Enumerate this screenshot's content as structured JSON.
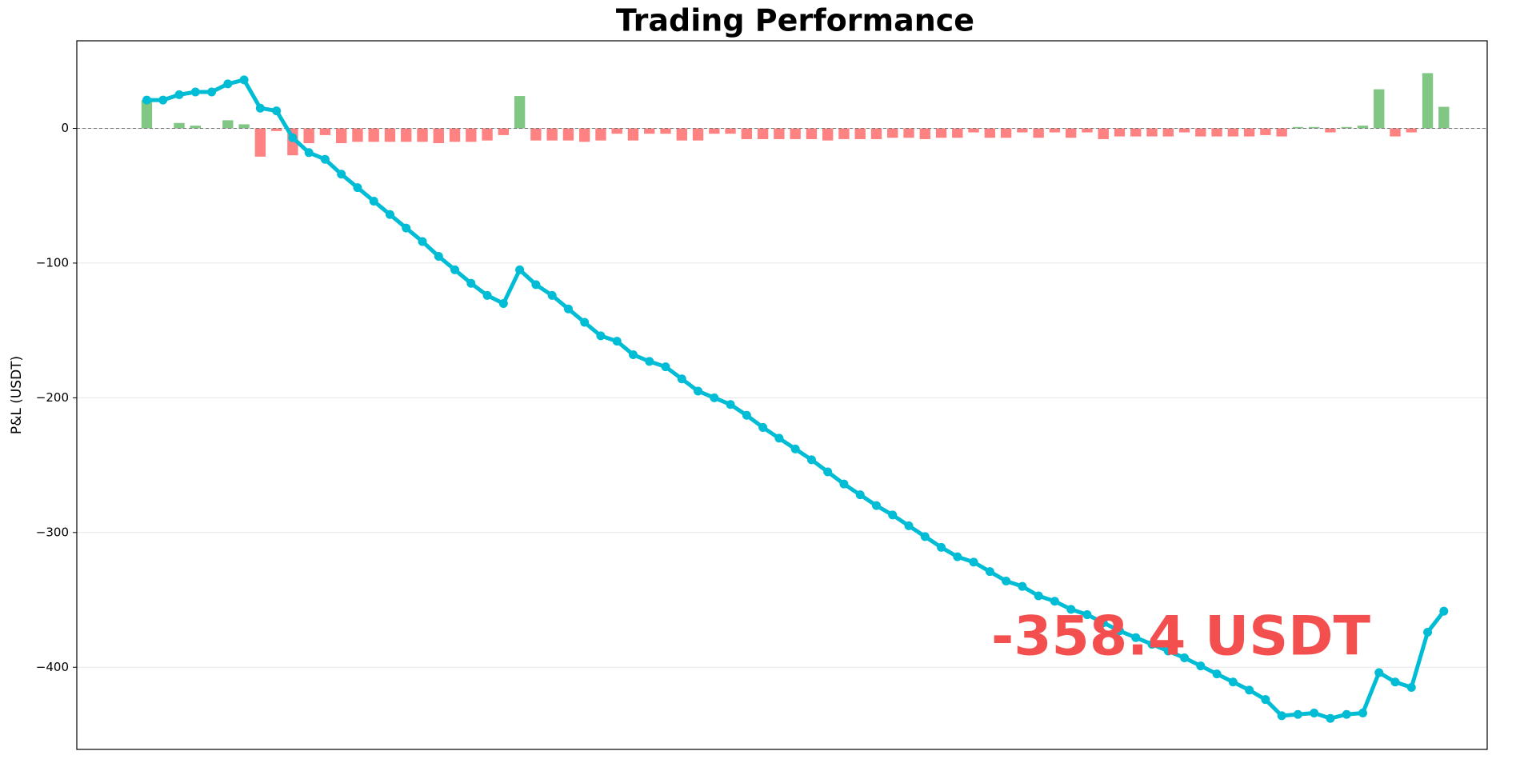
{
  "chart_data": {
    "type": "bar",
    "title": "Trading Performance",
    "y_label": "P&L (USDT)",
    "annotation": "-358.4 USDT",
    "annotation_color": "#f44f4f",
    "ylim": [
      -461,
      65
    ],
    "yticks": [
      0,
      {
        "value": -100,
        "label": "−100"
      },
      {
        "value": -200,
        "label": "−200"
      },
      {
        "value": -300,
        "label": "−300"
      },
      {
        "value": -400,
        "label": "−400"
      }
    ],
    "grid": true,
    "zero_line": true,
    "series": [
      {
        "type": "bar",
        "color": "#80c783",
        "negative_color": "#ff8282",
        "values": [
          21,
          0,
          4,
          2,
          0,
          6,
          3,
          -21,
          -2,
          -20,
          -11,
          -5,
          -11,
          -10,
          -10,
          -10,
          -10,
          -10,
          -11,
          -10,
          -10,
          -9,
          -5,
          24,
          -9,
          -9,
          -9,
          -10,
          -9,
          -4,
          -9,
          -4,
          -4,
          -9,
          -9,
          -4,
          -4,
          -8,
          -8,
          -8,
          -8,
          -8,
          -9,
          -8,
          -8,
          -8,
          -7,
          -7,
          -8,
          -7,
          -7,
          -3,
          -7,
          -7,
          -3,
          -7,
          -3,
          -7,
          -3,
          -8,
          -6,
          -6,
          -6,
          -6,
          -3,
          -6,
          -6,
          -6,
          -6,
          -5,
          -6,
          1,
          1,
          -3,
          1,
          2,
          29,
          -6,
          -3,
          41,
          16
        ]
      },
      {
        "type": "line",
        "color": "#00bcd4",
        "values": [
          21,
          21,
          25,
          27,
          27,
          33,
          36,
          15,
          13,
          -7,
          -18,
          -23,
          -34,
          -44,
          -54,
          -64,
          -74,
          -84,
          -95,
          -105,
          -115,
          -124,
          -130,
          -105,
          -116,
          -124,
          -134,
          -144,
          -154,
          -158,
          -168,
          -173,
          -177,
          -186,
          -195,
          -200,
          -205,
          -213,
          -222,
          -230,
          -238,
          -246,
          -255,
          -264,
          -272,
          -280,
          -287,
          -295,
          -303,
          -311,
          -318,
          -322,
          -329,
          -336,
          -340,
          -347,
          -351,
          -357,
          -361,
          -367,
          -373,
          -378,
          -383,
          -388,
          -393,
          -399,
          -405,
          -411,
          -417,
          -424,
          -436,
          -435,
          -434,
          -438,
          -435,
          -434,
          -404,
          -411,
          -415,
          -374,
          -358.4
        ]
      }
    ]
  }
}
